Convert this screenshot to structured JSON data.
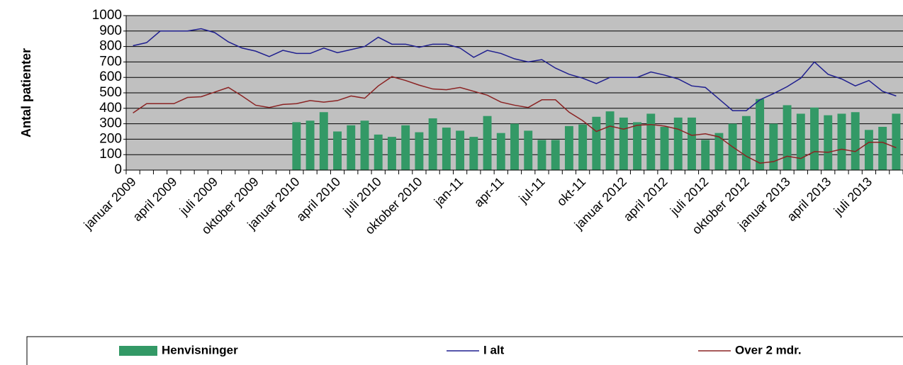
{
  "chart_data": {
    "type": "bar",
    "y_label": "Antal patienter",
    "categories": [
      "januar 2009",
      null,
      null,
      "april 2009",
      null,
      null,
      "juli 2009",
      null,
      null,
      "oktober 2009",
      null,
      null,
      "januar 2010",
      null,
      null,
      "april 2010",
      null,
      null,
      "juli 2010",
      null,
      null,
      "oktober 2010",
      null,
      null,
      "jan-11",
      null,
      null,
      "apr-11",
      null,
      null,
      "jul-11",
      null,
      null,
      "okt-11",
      null,
      null,
      "januar 2012",
      null,
      null,
      "april 2012",
      null,
      null,
      "juli 2012",
      null,
      null,
      "oktober 2012",
      null,
      null,
      "januar 2013",
      null,
      null,
      "april 2013",
      null,
      null,
      "juli 2013",
      null,
      null
    ],
    "series": [
      {
        "name": "Henvisninger",
        "type": "bar",
        "color": "#339966",
        "values": [
          null,
          null,
          null,
          null,
          null,
          null,
          null,
          null,
          null,
          null,
          null,
          null,
          310,
          320,
          375,
          250,
          290,
          320,
          230,
          215,
          290,
          245,
          335,
          275,
          255,
          215,
          350,
          240,
          300,
          255,
          195,
          195,
          285,
          295,
          345,
          380,
          340,
          310,
          365,
          280,
          340,
          340,
          195,
          240,
          300,
          350,
          460,
          300,
          420,
          365,
          405,
          355,
          365,
          375,
          260,
          280,
          365
        ]
      },
      {
        "name": "I alt",
        "type": "line",
        "color": "#1f1f8f",
        "values": [
          805,
          825,
          900,
          900,
          900,
          915,
          890,
          830,
          790,
          770,
          735,
          775,
          755,
          755,
          790,
          760,
          780,
          800,
          860,
          815,
          815,
          795,
          815,
          815,
          790,
          730,
          775,
          755,
          720,
          700,
          715,
          660,
          620,
          595,
          560,
          600,
          600,
          600,
          635,
          615,
          590,
          545,
          535,
          460,
          385,
          385,
          455,
          495,
          540,
          595,
          700,
          620,
          590,
          545,
          580,
          510,
          480
        ]
      },
      {
        "name": "Over 2 mdr.",
        "type": "line",
        "color": "#8b2323",
        "values": [
          370,
          430,
          430,
          430,
          470,
          475,
          505,
          535,
          480,
          420,
          405,
          425,
          430,
          450,
          440,
          450,
          480,
          465,
          545,
          605,
          580,
          550,
          525,
          520,
          535,
          510,
          485,
          440,
          420,
          405,
          455,
          455,
          375,
          320,
          250,
          285,
          265,
          290,
          295,
          285,
          265,
          225,
          235,
          215,
          150,
          90,
          45,
          55,
          90,
          75,
          120,
          115,
          135,
          120,
          180,
          180,
          145
        ]
      }
    ],
    "ylim": [
      0,
      1000
    ],
    "yticks": [
      0,
      100,
      200,
      300,
      400,
      500,
      600,
      700,
      800,
      900,
      1000
    ],
    "grid": true
  }
}
